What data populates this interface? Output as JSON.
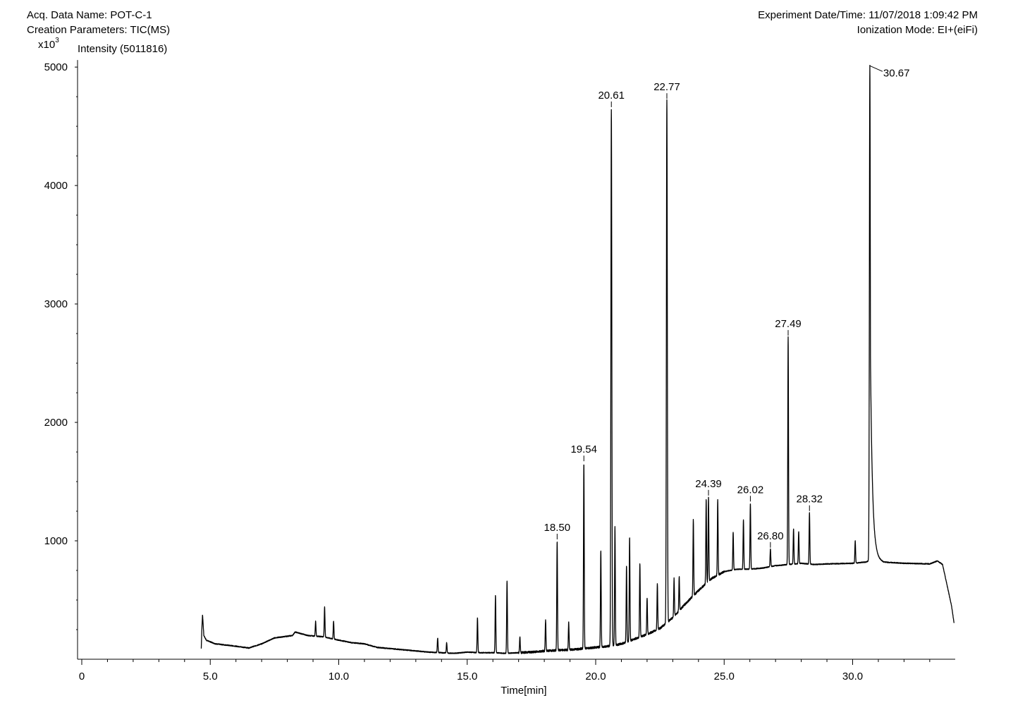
{
  "header": {
    "acq_data_name": "Acq. Data Name: POT-C-1",
    "creation_parameters": "Creation Parameters: TIC(MS)",
    "experiment_datetime": "Experiment Date/Time: 11/07/2018 1:09:42 PM",
    "ionization_mode": "Ionization Mode: EI+(eiFi)"
  },
  "axis_unit": {
    "base": "x10",
    "exponent": "3"
  },
  "intensity_label": "Intensity (5011816)",
  "chart_data": {
    "type": "line",
    "title": "",
    "xlabel": "Time[min]",
    "ylabel": "Intensity (5011816)",
    "xlim": [
      -0.2,
      34.0
    ],
    "ylim": [
      0,
      5011.816
    ],
    "x_ticks": [
      0,
      5.0,
      10.0,
      15.0,
      20.0,
      25.0,
      30.0
    ],
    "x_tick_labels": [
      "0",
      "5.0",
      "10.0",
      "15.0",
      "20.0",
      "25.0",
      "30.0"
    ],
    "y_ticks": [
      1000,
      2000,
      3000,
      4000,
      5000
    ],
    "y_tick_labels": [
      "1000",
      "2000",
      "3000",
      "4000",
      "5000"
    ],
    "baseline": [
      [
        4.65,
        90
      ],
      [
        4.67,
        240
      ],
      [
        4.7,
        380
      ],
      [
        4.75,
        200
      ],
      [
        4.85,
        160
      ],
      [
        5.2,
        130
      ],
      [
        6.0,
        110
      ],
      [
        6.5,
        95
      ],
      [
        7.0,
        130
      ],
      [
        7.5,
        180
      ],
      [
        8.2,
        200
      ],
      [
        8.3,
        230
      ],
      [
        8.8,
        200
      ],
      [
        9.4,
        190
      ],
      [
        9.8,
        170
      ],
      [
        10.5,
        140
      ],
      [
        11.0,
        130
      ],
      [
        11.5,
        100
      ],
      [
        12.0,
        90
      ],
      [
        12.5,
        80
      ],
      [
        13.0,
        70
      ],
      [
        13.5,
        60
      ],
      [
        14.0,
        55
      ],
      [
        14.5,
        50
      ],
      [
        15.0,
        60
      ],
      [
        15.5,
        55
      ],
      [
        16.0,
        55
      ],
      [
        16.5,
        50
      ],
      [
        17.0,
        55
      ],
      [
        17.5,
        60
      ],
      [
        18.0,
        70
      ],
      [
        18.5,
        75
      ],
      [
        19.0,
        80
      ],
      [
        19.5,
        90
      ],
      [
        20.0,
        100
      ],
      [
        20.5,
        110
      ],
      [
        21.0,
        130
      ],
      [
        21.5,
        170
      ],
      [
        22.0,
        210
      ],
      [
        22.5,
        260
      ],
      [
        23.0,
        350
      ],
      [
        23.5,
        470
      ],
      [
        24.0,
        580
      ],
      [
        24.5,
        680
      ],
      [
        25.0,
        740
      ],
      [
        25.5,
        760
      ],
      [
        26.0,
        760
      ],
      [
        26.5,
        770
      ],
      [
        27.0,
        790
      ],
      [
        27.5,
        800
      ],
      [
        28.0,
        810
      ],
      [
        28.5,
        800
      ],
      [
        29.0,
        805
      ],
      [
        30.0,
        810
      ],
      [
        30.5,
        820
      ],
      [
        30.9,
        850
      ],
      [
        31.2,
        820
      ],
      [
        32.0,
        810
      ],
      [
        33.0,
        805
      ],
      [
        33.3,
        830
      ],
      [
        33.5,
        800
      ],
      [
        33.7,
        600
      ],
      [
        33.85,
        450
      ],
      [
        33.95,
        300
      ]
    ],
    "peaks": [
      {
        "rt": 9.1,
        "height": 320,
        "labeled": false
      },
      {
        "rt": 9.45,
        "height": 440,
        "labeled": false
      },
      {
        "rt": 9.8,
        "height": 320,
        "labeled": false
      },
      {
        "rt": 13.85,
        "height": 180,
        "labeled": false
      },
      {
        "rt": 14.2,
        "height": 140,
        "labeled": false
      },
      {
        "rt": 15.4,
        "height": 350,
        "labeled": false
      },
      {
        "rt": 16.1,
        "height": 540,
        "labeled": false
      },
      {
        "rt": 16.55,
        "height": 660,
        "labeled": false
      },
      {
        "rt": 17.05,
        "height": 190,
        "labeled": false
      },
      {
        "rt": 18.05,
        "height": 330,
        "labeled": false
      },
      {
        "rt": 18.5,
        "height": 1000,
        "label": "18.50",
        "labeled": true
      },
      {
        "rt": 18.95,
        "height": 310,
        "labeled": false
      },
      {
        "rt": 19.54,
        "height": 1660,
        "label": "19.54",
        "labeled": true
      },
      {
        "rt": 20.2,
        "height": 920,
        "labeled": false
      },
      {
        "rt": 20.61,
        "height": 4650,
        "label": "20.61",
        "labeled": true
      },
      {
        "rt": 20.75,
        "height": 1120,
        "labeled": false
      },
      {
        "rt": 21.2,
        "height": 790,
        "labeled": false
      },
      {
        "rt": 21.32,
        "height": 1030,
        "labeled": false
      },
      {
        "rt": 21.72,
        "height": 810,
        "labeled": false
      },
      {
        "rt": 22.0,
        "height": 520,
        "labeled": false
      },
      {
        "rt": 22.4,
        "height": 640,
        "labeled": false
      },
      {
        "rt": 22.77,
        "height": 4720,
        "label": "22.77",
        "labeled": true
      },
      {
        "rt": 23.05,
        "height": 680,
        "labeled": false
      },
      {
        "rt": 23.25,
        "height": 700,
        "labeled": false
      },
      {
        "rt": 23.8,
        "height": 1180,
        "labeled": false
      },
      {
        "rt": 24.3,
        "height": 1350,
        "labeled": false
      },
      {
        "rt": 24.39,
        "height": 1370,
        "label": "24.39",
        "labeled": true
      },
      {
        "rt": 24.75,
        "height": 1350,
        "labeled": false
      },
      {
        "rt": 25.35,
        "height": 1070,
        "labeled": false
      },
      {
        "rt": 25.75,
        "height": 1180,
        "labeled": false
      },
      {
        "rt": 26.02,
        "height": 1320,
        "label": "26.02",
        "labeled": true
      },
      {
        "rt": 26.8,
        "height": 930,
        "label": "26.80",
        "labeled": true
      },
      {
        "rt": 27.49,
        "height": 2720,
        "label": "27.49",
        "labeled": true
      },
      {
        "rt": 27.7,
        "height": 1100,
        "labeled": false
      },
      {
        "rt": 27.9,
        "height": 1080,
        "labeled": false
      },
      {
        "rt": 28.32,
        "height": 1240,
        "label": "28.32",
        "labeled": true
      },
      {
        "rt": 30.1,
        "height": 1000,
        "labeled": false
      },
      {
        "rt": 30.67,
        "height": 5011,
        "label": "30.67",
        "labeled": true
      }
    ]
  }
}
